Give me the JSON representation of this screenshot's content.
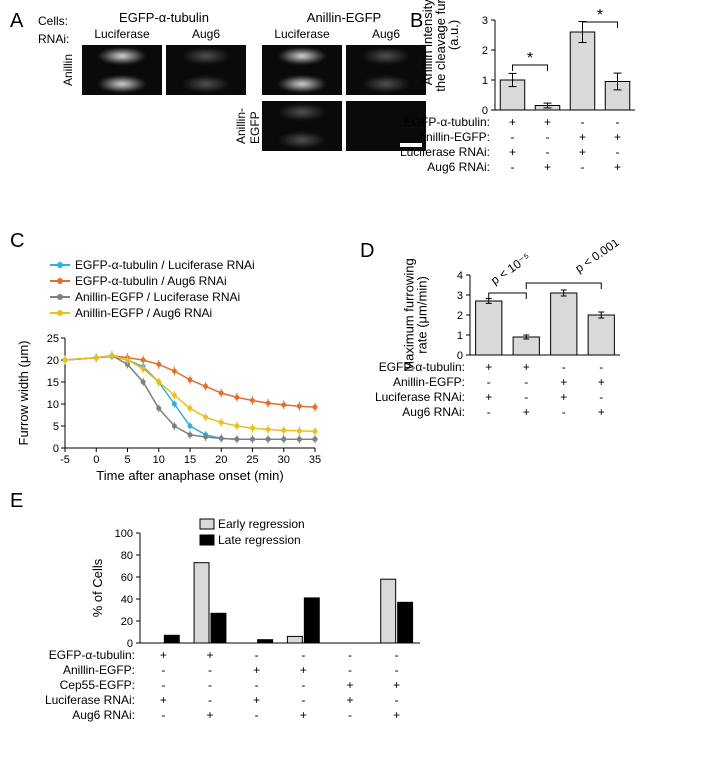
{
  "panelA": {
    "letter": "A",
    "label_cells": "Cells:",
    "label_rnai": "RNAi:",
    "group1_title": "EGFP-α-tubulin",
    "group2_title": "Anillin-EGFP",
    "sub1": "Luciferase",
    "sub2": "Aug6",
    "rowlabel1": "Anillin",
    "rowlabel2": "Anillin-\nEGFP"
  },
  "panelB": {
    "letter": "B",
    "ylabel": "Anillin intensity at\nthe cleavage furrow\n(a.u.)",
    "ylim": [
      0,
      3
    ],
    "ytick_step": 1,
    "bar_color": "#d9d9d9",
    "values": [
      1.0,
      0.15,
      2.6,
      0.95
    ],
    "errors": [
      0.22,
      0.08,
      0.35,
      0.28
    ],
    "sig_marker": "*",
    "cond_labels": [
      "EGFP-α-tubulin:",
      "Anillin-EGFP:",
      "Luciferase RNAi:",
      "Aug6 RNAi:"
    ],
    "cond_matrix": [
      [
        "+",
        "+",
        "-",
        "-"
      ],
      [
        "-",
        "-",
        "+",
        "+"
      ],
      [
        "+",
        "-",
        "+",
        "-"
      ],
      [
        "-",
        "+",
        "-",
        "+"
      ]
    ]
  },
  "panelC": {
    "letter": "C",
    "legend": [
      "EGFP-α-tubulin / Luciferase RNAi",
      "EGFP-α-tubulin  / Aug6 RNAi",
      "Anillin-EGFP / Luciferase RNAi",
      "Anillin-EGFP / Aug6 RNAi"
    ],
    "legend_colors": [
      "#2fb0e0",
      "#e07030",
      "#808080",
      "#e8c020"
    ],
    "xlabel": "Time after anaphase onset (min)",
    "ylabel": "Furrow width (μm)",
    "xlim": [
      -5,
      35
    ],
    "xticks": [
      -5,
      0,
      5,
      10,
      15,
      20,
      25,
      30,
      35
    ],
    "ylim": [
      0,
      25
    ],
    "yticks": [
      0,
      5,
      10,
      15,
      20,
      25
    ],
    "series": [
      {
        "color": "#2fb0e0",
        "x": [
          -5,
          0,
          2.5,
          5,
          7.5,
          10,
          12.5,
          15,
          17.5,
          20,
          22.5,
          25,
          27.5,
          30,
          32.5,
          35
        ],
        "y": [
          20,
          20.5,
          20.8,
          20,
          18.5,
          15,
          10,
          5,
          3,
          2.2,
          2,
          2,
          2,
          2,
          2,
          2
        ],
        "err": 0.8
      },
      {
        "color": "#e07030",
        "x": [
          -5,
          0,
          2.5,
          5,
          7.5,
          10,
          12.5,
          15,
          17.5,
          20,
          22.5,
          25,
          27.5,
          30,
          32.5,
          35
        ],
        "y": [
          20,
          20.5,
          21,
          20.5,
          20,
          19,
          17.5,
          15.5,
          14,
          12.5,
          11.5,
          10.8,
          10.2,
          9.8,
          9.5,
          9.3
        ],
        "err": 1.0
      },
      {
        "color": "#808080",
        "x": [
          -5,
          0,
          2.5,
          5,
          7.5,
          10,
          12.5,
          15,
          17.5,
          20,
          22.5,
          25,
          27.5,
          30,
          32.5,
          35
        ],
        "y": [
          20,
          20.5,
          21,
          19,
          15,
          9,
          5,
          3,
          2.5,
          2.2,
          2,
          2,
          2,
          2,
          2,
          2
        ],
        "err": 0.9
      },
      {
        "color": "#e8c020",
        "x": [
          -5,
          0,
          2.5,
          5,
          7.5,
          10,
          12.5,
          15,
          17.5,
          20,
          22.5,
          25,
          27.5,
          30,
          32.5,
          35
        ],
        "y": [
          20,
          20.5,
          21,
          20,
          18,
          15,
          12,
          9,
          7,
          5.8,
          5,
          4.5,
          4.2,
          4,
          3.9,
          3.8
        ],
        "err": 1.0
      }
    ]
  },
  "panelD": {
    "letter": "D",
    "ylabel": "Maximum furrowing\nrate (μm/min)",
    "ylim": [
      0,
      4
    ],
    "ytick_step": 1,
    "values": [
      2.7,
      0.9,
      3.1,
      2.0
    ],
    "errors": [
      0.12,
      0.1,
      0.15,
      0.15
    ],
    "p_labels": [
      "p < 10⁻⁵",
      "p < 0.001"
    ],
    "cond_labels": [
      "EGFP-α-tubulin:",
      "Anillin-EGFP:",
      "Luciferase RNAi:",
      "Aug6 RNAi:"
    ],
    "cond_matrix": [
      [
        "+",
        "+",
        "-",
        "-"
      ],
      [
        "-",
        "-",
        "+",
        "+"
      ],
      [
        "+",
        "-",
        "+",
        "-"
      ],
      [
        "-",
        "+",
        "-",
        "+"
      ]
    ]
  },
  "panelE": {
    "letter": "E",
    "legend": [
      "Early regression",
      "Late regression"
    ],
    "legend_colors": [
      "#d9d9d9",
      "#000000"
    ],
    "ylabel": "% of Cells",
    "ylim": [
      0,
      100
    ],
    "ytick_step": 20,
    "early": [
      0,
      73,
      0,
      6,
      0,
      58
    ],
    "late": [
      7,
      27,
      3,
      41,
      0,
      37
    ],
    "cond_labels": [
      "EGFP-α-tubulin:",
      "Anillin-EGFP:",
      "Cep55-EGFP:",
      "Luciferase RNAi:",
      "Aug6 RNAi:"
    ],
    "cond_matrix": [
      [
        "+",
        "+",
        "-",
        "-",
        "-",
        "-"
      ],
      [
        "-",
        "-",
        "+",
        "+",
        "-",
        "-"
      ],
      [
        "-",
        "-",
        "-",
        "-",
        "+",
        "+"
      ],
      [
        "+",
        "-",
        "+",
        "-",
        "+",
        "-"
      ],
      [
        "-",
        "+",
        "-",
        "+",
        "-",
        "+"
      ]
    ]
  }
}
